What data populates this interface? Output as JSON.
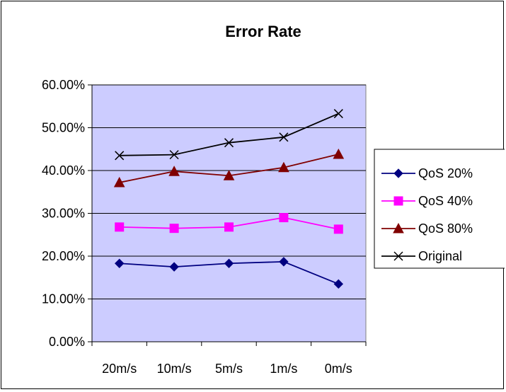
{
  "chart_data": {
    "type": "line",
    "title": "Error Rate",
    "xlabel": "",
    "ylabel": "",
    "categories": [
      "20m/s",
      "10m/s",
      "5m/s",
      "1m/s",
      "0m/s"
    ],
    "y_tick_labels": [
      "0.00%",
      "10.00%",
      "20.00%",
      "30.00%",
      "40.00%",
      "50.00%",
      "60.00%"
    ],
    "ylim": [
      0,
      0.6
    ],
    "grid": true,
    "plot_background": "#ccccff",
    "legend_position": "right",
    "series": [
      {
        "name": "QoS 20%",
        "color": "#000080",
        "marker": "diamond",
        "values": [
          0.183,
          0.175,
          0.183,
          0.187,
          0.135
        ]
      },
      {
        "name": "QoS 40%",
        "color": "#ff00ff",
        "marker": "square",
        "values": [
          0.268,
          0.265,
          0.268,
          0.29,
          0.263
        ]
      },
      {
        "name": "QoS 80%",
        "color": "#800000",
        "marker": "triangle",
        "values": [
          0.372,
          0.398,
          0.388,
          0.407,
          0.438
        ]
      },
      {
        "name": "Original",
        "color": "#000000",
        "marker": "x",
        "values": [
          0.435,
          0.437,
          0.465,
          0.478,
          0.533
        ]
      }
    ]
  }
}
